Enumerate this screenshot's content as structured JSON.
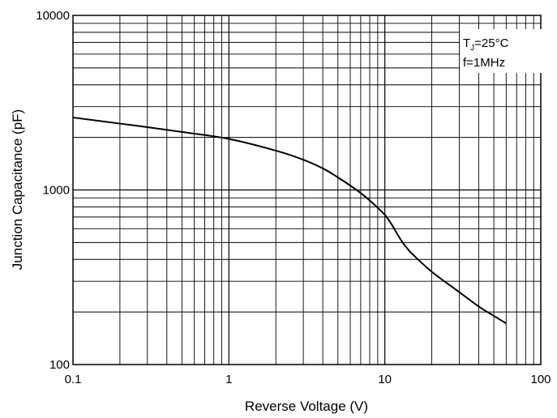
{
  "chart_data": {
    "type": "line",
    "title": "",
    "xlabel": "Reverse Voltage (V)",
    "ylabel": "Junction Capacitance (pF)",
    "xscale": "log",
    "yscale": "log",
    "xlim": [
      0.1,
      100
    ],
    "ylim": [
      100,
      10000
    ],
    "grid": "on (major and minor)",
    "x_ticks": [
      "0.1",
      "1",
      "10",
      "100"
    ],
    "y_ticks": [
      "100",
      "1000",
      "10000"
    ],
    "annotations": {
      "condition_tj": {
        "base": "T",
        "sub": "J",
        "rest": "=25°C"
      },
      "condition_f": "f=1MHz"
    },
    "series": [
      {
        "x": [
          0.1,
          0.2,
          0.3,
          0.5,
          1,
          2,
          3,
          4,
          5,
          6,
          7,
          8,
          9,
          10,
          11,
          12,
          13,
          14,
          15,
          20,
          30,
          40,
          50,
          60
        ],
        "values": [
          2600,
          2400,
          2290,
          2150,
          1960,
          1680,
          1490,
          1330,
          1180,
          1060,
          960,
          870,
          790,
          720,
          640,
          560,
          500,
          460,
          430,
          340,
          260,
          215,
          190,
          172
        ]
      }
    ]
  }
}
